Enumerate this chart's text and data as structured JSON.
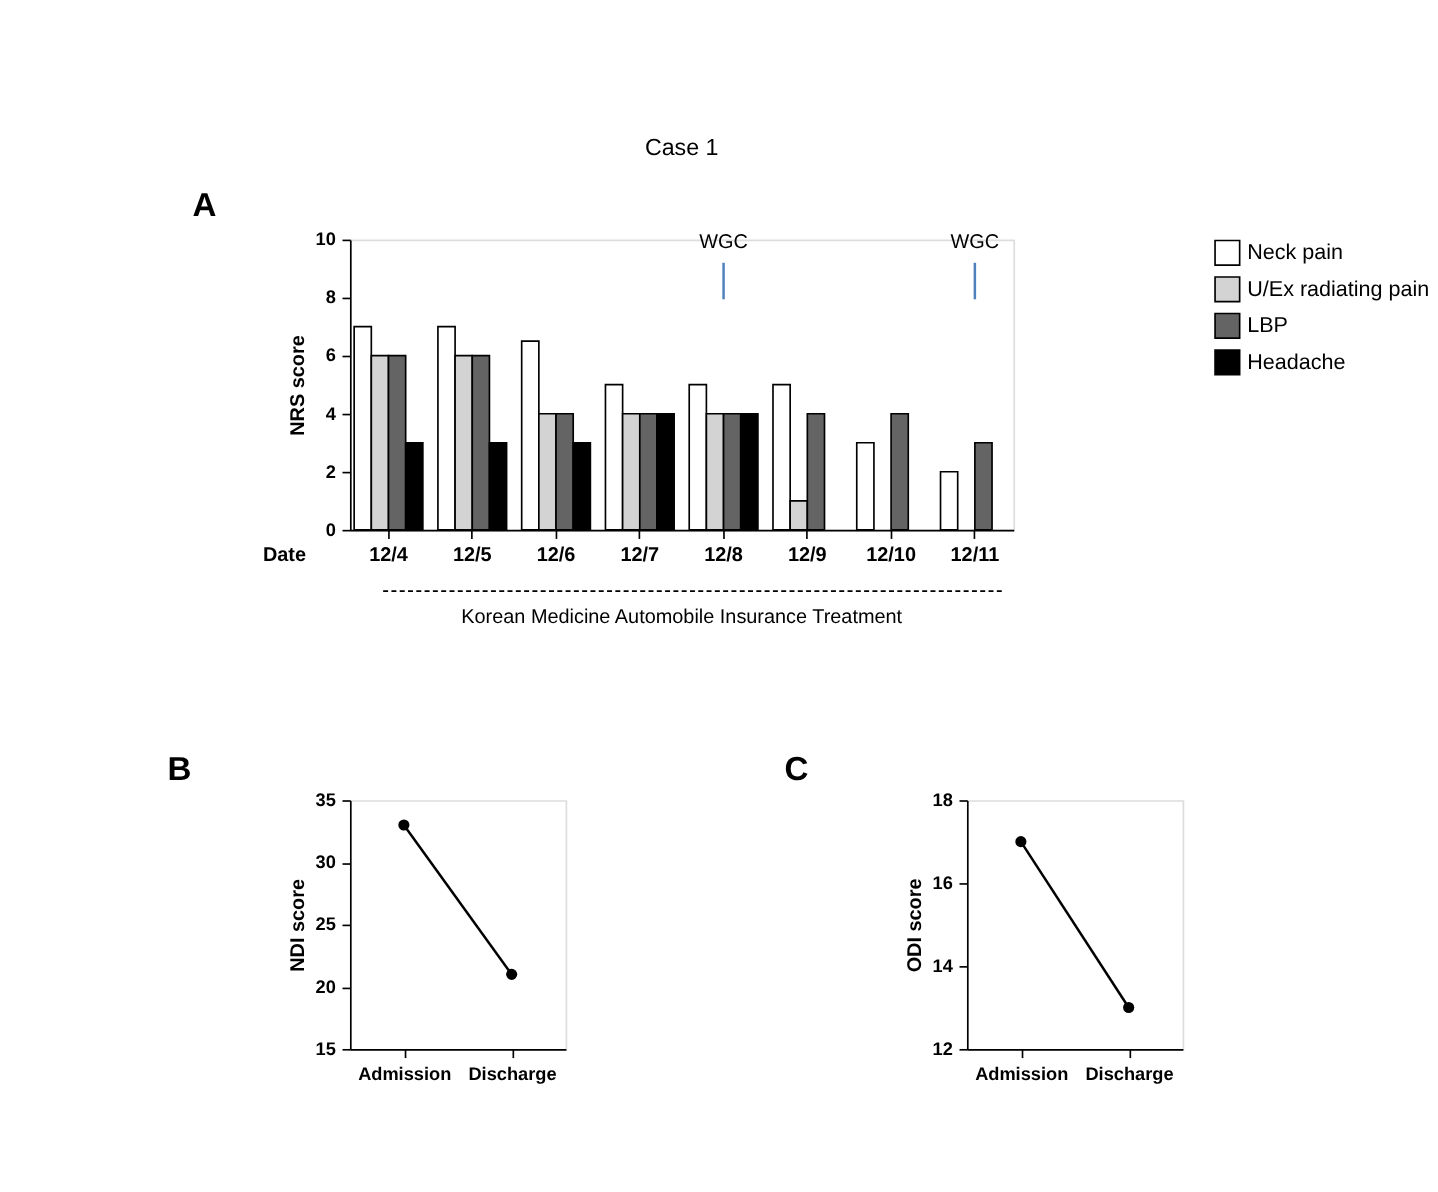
{
  "chart_data": [
    {
      "type": "bar",
      "title": "Case 1",
      "ylabel": "NRS score",
      "xlabel": "Date",
      "categories": [
        "12/4",
        "12/5",
        "12/6",
        "12/7",
        "12/8",
        "12/9",
        "12/10",
        "12/11"
      ],
      "series": [
        {
          "name": "Neck pain",
          "color": "#ffffff",
          "values": [
            7,
            7,
            6.5,
            5,
            5,
            5,
            3,
            2
          ]
        },
        {
          "name": "U/Ex radiating pain",
          "color": "#d3d3d3",
          "values": [
            6,
            6,
            4,
            4,
            4,
            1,
            null,
            null
          ]
        },
        {
          "name": "LBP",
          "color": "#646464",
          "values": [
            6,
            6,
            4,
            4,
            4,
            4,
            4,
            3
          ]
        },
        {
          "name": "Headache",
          "color": "#000000",
          "values": [
            3,
            3,
            3,
            4,
            4,
            null,
            null,
            null
          ]
        }
      ],
      "ylim": [
        0,
        10
      ],
      "yticks": [
        0,
        2,
        4,
        6,
        8,
        10
      ],
      "grid": false,
      "legend": "top right",
      "ref_lines": [
        {
          "axis": "x",
          "value": "12/8",
          "label": "WGC",
          "color": "#4f81bd"
        },
        {
          "axis": "x",
          "value": "12/11",
          "label": "WGC",
          "color": "#4f81bd"
        }
      ],
      "annotations": [
        "A",
        "Korean Medicine Automobile Insurance Treatment"
      ]
    },
    {
      "type": "line",
      "ylabel": "NDI score",
      "categories": [
        "Admission",
        "Discharge"
      ],
      "series": [
        {
          "color": "#000000",
          "values": [
            33,
            21
          ]
        }
      ],
      "ylim": [
        15,
        35
      ],
      "yticks": [
        15,
        20,
        25,
        30,
        35
      ],
      "grid": false,
      "marker": "circle",
      "annotations": [
        "B"
      ]
    },
    {
      "type": "line",
      "ylabel": "ODI score",
      "categories": [
        "Admission",
        "Discharge"
      ],
      "series": [
        {
          "color": "#000000",
          "values": [
            17,
            13
          ]
        }
      ],
      "ylim": [
        12,
        18
      ],
      "yticks": [
        12,
        14,
        16,
        18
      ],
      "grid": false,
      "marker": "circle",
      "annotations": [
        "C"
      ]
    }
  ]
}
